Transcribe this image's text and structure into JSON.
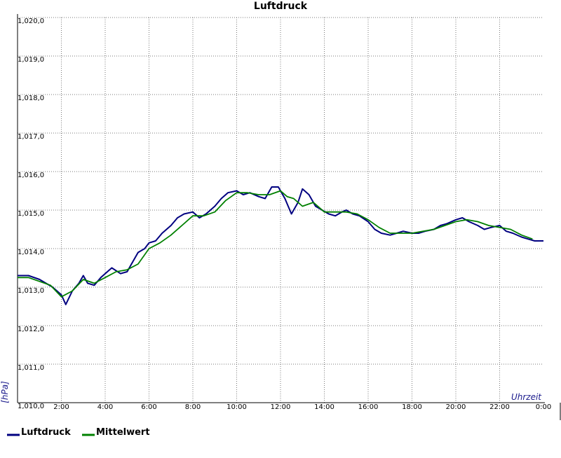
{
  "chart_data": {
    "type": "line",
    "title": "Luftdruck",
    "ylabel": "[hPa]",
    "xlabel": "Uhrzeit",
    "ylim": [
      1010.0,
      1020.0
    ],
    "xlim": [
      0,
      24
    ],
    "y_ticks": [
      "1,010,0",
      "1,011,0",
      "1,012,0",
      "1,013,0",
      "1,014,0",
      "1,015,0",
      "1,016,0",
      "1,017,0",
      "1,018,0",
      "1,019,0",
      "1,020,0"
    ],
    "x_ticks": [
      "2:00",
      "4:00",
      "6:00",
      "8:00",
      "10:00",
      "12:00",
      "14:00",
      "16:00",
      "18:00",
      "20:00",
      "22:00",
      "0:00"
    ],
    "grid": true,
    "legend_position": "bottom-left",
    "series": [
      {
        "name": "Luftdruck",
        "color": "#000080",
        "x": [
          0,
          0.5,
          1,
          1.3,
          1.6,
          2,
          2.2,
          2.5,
          2.8,
          3,
          3.2,
          3.5,
          3.8,
          4,
          4.3,
          4.7,
          5,
          5.2,
          5.5,
          5.8,
          6,
          6.3,
          6.6,
          7,
          7.3,
          7.6,
          8,
          8.3,
          8.6,
          9,
          9.3,
          9.6,
          10,
          10.3,
          10.6,
          11,
          11.3,
          11.6,
          11.9,
          12.2,
          12.5,
          12.8,
          13,
          13.3,
          13.6,
          13.9,
          14.2,
          14.5,
          14.8,
          15,
          15.3,
          15.6,
          16,
          16.3,
          16.6,
          17,
          17.3,
          17.6,
          18,
          18.3,
          18.6,
          19,
          19.3,
          19.6,
          20,
          20.3,
          20.6,
          21,
          21.3,
          21.6,
          22,
          22.3,
          22.6,
          23,
          23.3,
          23.6,
          24
        ],
        "values": [
          1013.3,
          1013.3,
          1013.2,
          1013.1,
          1013.0,
          1012.8,
          1012.55,
          1012.9,
          1013.1,
          1013.3,
          1013.1,
          1013.05,
          1013.25,
          1013.35,
          1013.5,
          1013.35,
          1013.4,
          1013.6,
          1013.9,
          1014.0,
          1014.15,
          1014.2,
          1014.4,
          1014.6,
          1014.8,
          1014.9,
          1014.95,
          1014.8,
          1014.9,
          1015.1,
          1015.3,
          1015.45,
          1015.5,
          1015.4,
          1015.45,
          1015.35,
          1015.3,
          1015.6,
          1015.6,
          1015.3,
          1014.9,
          1015.2,
          1015.55,
          1015.4,
          1015.1,
          1015.0,
          1014.9,
          1014.85,
          1014.95,
          1015.0,
          1014.9,
          1014.85,
          1014.7,
          1014.5,
          1014.4,
          1014.35,
          1014.4,
          1014.45,
          1014.4,
          1014.4,
          1014.45,
          1014.5,
          1014.6,
          1014.65,
          1014.75,
          1014.8,
          1014.7,
          1014.6,
          1014.5,
          1014.55,
          1014.6,
          1014.45,
          1014.4,
          1014.3,
          1014.25,
          1014.2,
          1014.2
        ]
      },
      {
        "name": "Mittelwert",
        "color": "#008000",
        "x": [
          0,
          0.5,
          1,
          1.5,
          2,
          2.5,
          3,
          3.5,
          4,
          4.5,
          5,
          5.5,
          6,
          6.5,
          7,
          7.5,
          8,
          8.5,
          9,
          9.5,
          10,
          10.5,
          11,
          11.5,
          12,
          12.3,
          12.6,
          13,
          13.5,
          14,
          14.5,
          15,
          15.5,
          16,
          16.5,
          17,
          17.5,
          18,
          18.5,
          19,
          19.5,
          20,
          20.5,
          21,
          21.5,
          22,
          22.5,
          23,
          23.5
        ],
        "values": [
          1013.25,
          1013.25,
          1013.15,
          1013.05,
          1012.75,
          1012.9,
          1013.2,
          1013.1,
          1013.25,
          1013.4,
          1013.45,
          1013.6,
          1014.0,
          1014.15,
          1014.35,
          1014.6,
          1014.85,
          1014.85,
          1014.95,
          1015.25,
          1015.45,
          1015.45,
          1015.4,
          1015.4,
          1015.5,
          1015.35,
          1015.3,
          1015.1,
          1015.2,
          1014.95,
          1014.95,
          1014.95,
          1014.9,
          1014.75,
          1014.55,
          1014.4,
          1014.4,
          1014.4,
          1014.45,
          1014.5,
          1014.6,
          1014.7,
          1014.75,
          1014.7,
          1014.6,
          1014.55,
          1014.5,
          1014.35,
          1014.25
        ]
      }
    ]
  }
}
